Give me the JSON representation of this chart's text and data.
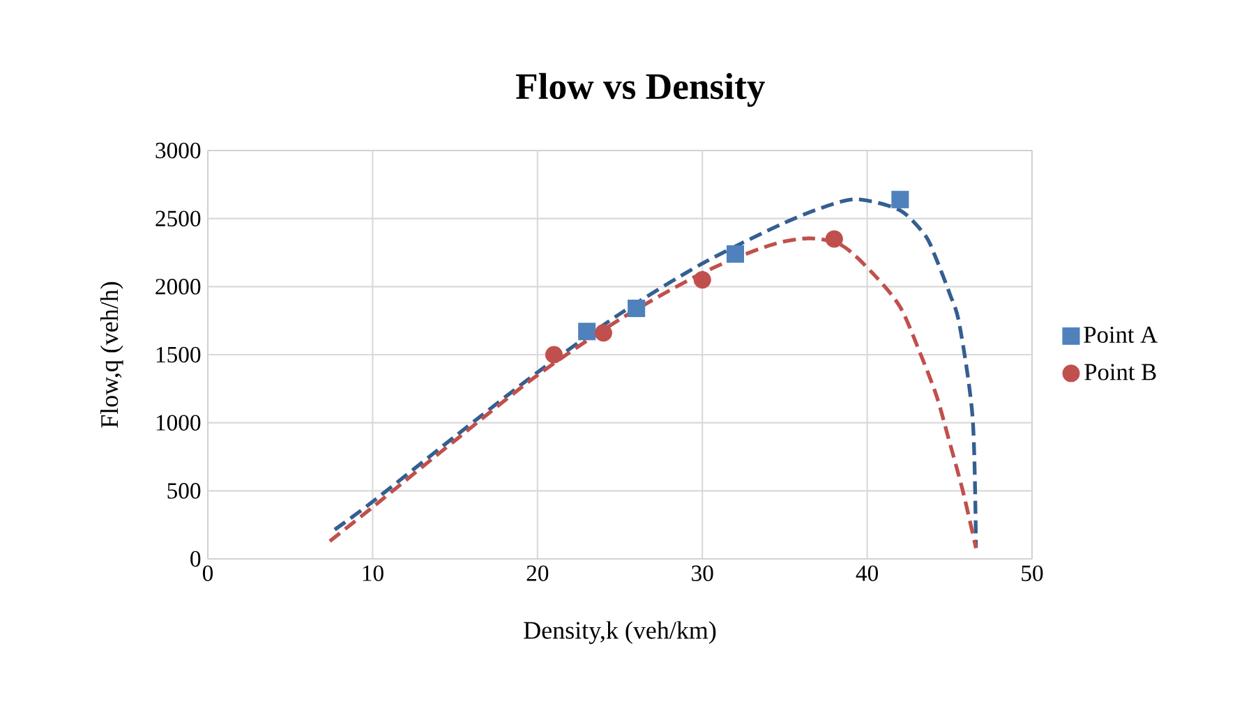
{
  "chart_data": {
    "type": "scatter",
    "title": "Flow vs Density",
    "xlabel": "Density,k (veh/km)",
    "ylabel": "Flow,q (veh/h)",
    "xlim": [
      0,
      50
    ],
    "xticks": [
      0,
      10,
      20,
      30,
      40,
      50
    ],
    "ylim": [
      0,
      3000
    ],
    "yticks": [
      0,
      500,
      1000,
      1500,
      2000,
      2500,
      3000
    ],
    "grid": true,
    "legend": "right",
    "series": [
      {
        "name": "Point A",
        "color": "#4f81bd",
        "marker": "square",
        "x": [
          23,
          26,
          32,
          42
        ],
        "values": [
          1670,
          1840,
          2240,
          2640
        ]
      },
      {
        "name": "Point B",
        "color": "#c0504d",
        "marker": "circle",
        "x": [
          21,
          24,
          30,
          38
        ],
        "values": [
          1500,
          1660,
          2050,
          2350
        ]
      },
      {
        "type": "line",
        "color": "#335f91",
        "marker": "none",
        "line_style": "dashed",
        "x": [
          7.7,
          10,
          15,
          20,
          25,
          30,
          35,
          38,
          39.6,
          42,
          43.5,
          44.1,
          45,
          45.6,
          46.4,
          46.6
        ],
        "values": [
          215,
          420,
          900,
          1370,
          1800,
          2170,
          2470,
          2610,
          2640,
          2560,
          2380,
          2230,
          1950,
          1720,
          1030,
          80
        ]
      },
      {
        "type": "line",
        "color": "#c0504d",
        "marker": "none",
        "line_style": "dashed",
        "x": [
          7.4,
          10,
          15,
          20,
          25,
          30,
          34,
          36.5,
          38.5,
          40.4,
          42,
          43.2,
          44.2,
          44.9,
          45.8,
          46.6
        ],
        "values": [
          130,
          380,
          870,
          1350,
          1760,
          2100,
          2300,
          2355,
          2300,
          2090,
          1850,
          1515,
          1200,
          900,
          500,
          80
        ]
      }
    ]
  }
}
